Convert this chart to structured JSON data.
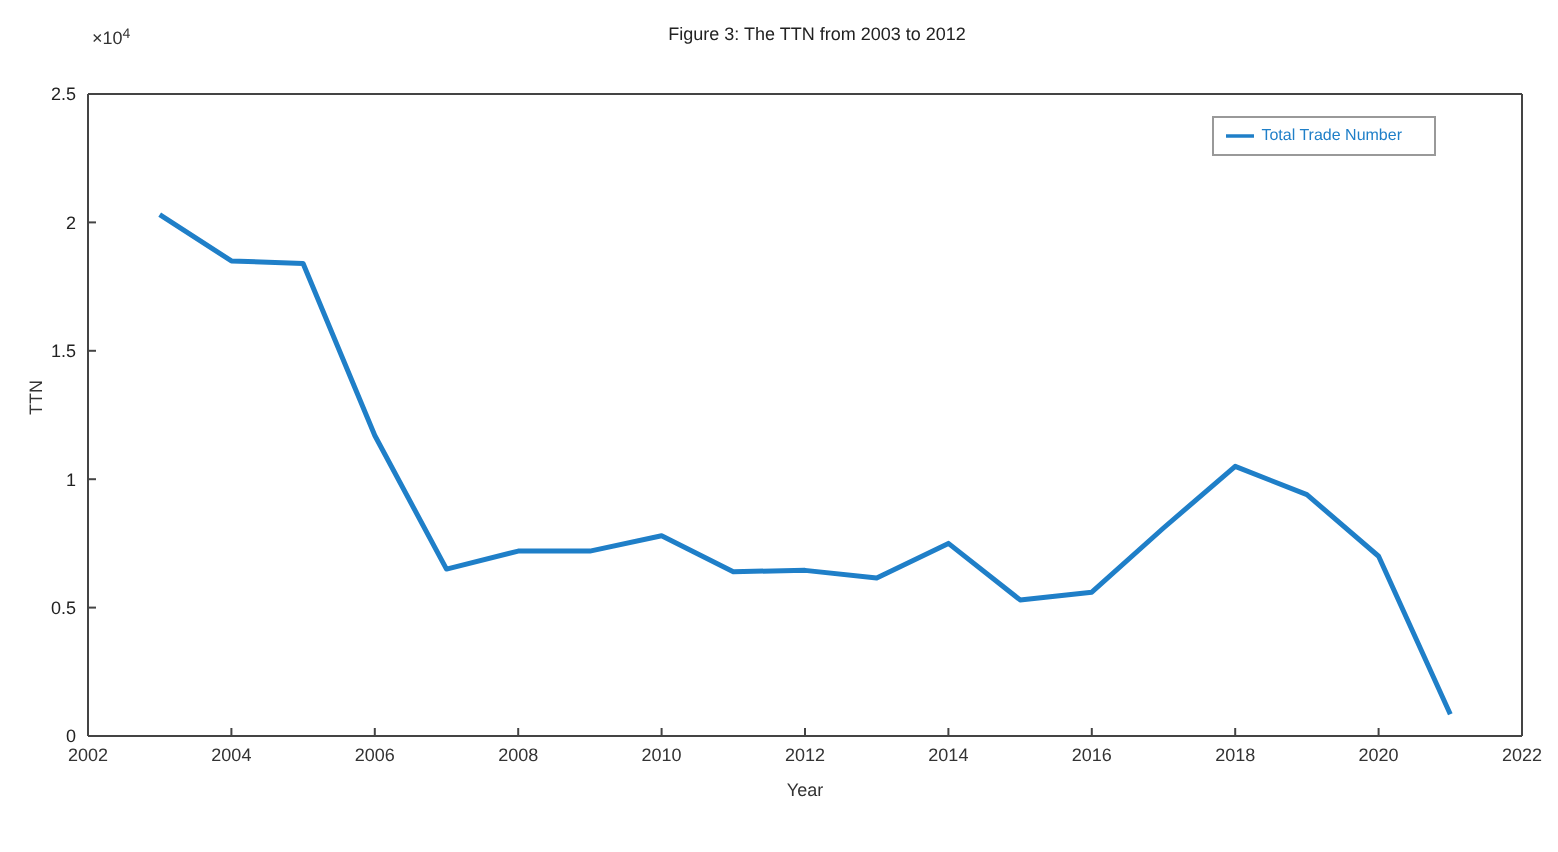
{
  "chart_data": {
    "type": "line",
    "title": "Figure 3: The TTN from 2003 to 2012",
    "xlabel": "Year",
    "ylabel": "TTN",
    "x": [
      2003,
      2004,
      2005,
      2006,
      2007,
      2008,
      2009,
      2010,
      2011,
      2012,
      2013,
      2014,
      2015,
      2016,
      2017,
      2018,
      2019,
      2020,
      2021
    ],
    "series": [
      {
        "name": "Total Trade Number",
        "color": "#1f7fc8",
        "values": [
          2.03,
          1.85,
          1.84,
          1.17,
          0.65,
          0.72,
          0.72,
          0.78,
          0.64,
          0.645,
          0.615,
          0.75,
          0.53,
          0.56,
          0.81,
          1.05,
          0.94,
          0.7,
          0.085
        ]
      }
    ],
    "xlim": [
      2002,
      2022
    ],
    "xticks": [
      2002,
      2004,
      2006,
      2008,
      2010,
      2012,
      2014,
      2016,
      2018,
      2020,
      2022
    ],
    "ylim": [
      0,
      2.5
    ],
    "yticks": [
      0,
      0.5,
      1,
      1.5,
      2,
      2.5
    ],
    "annotations": [
      "×10$^{4}$"
    ],
    "legend": "top right",
    "grid": false,
    "marker": "none",
    "line_style": "solid"
  }
}
